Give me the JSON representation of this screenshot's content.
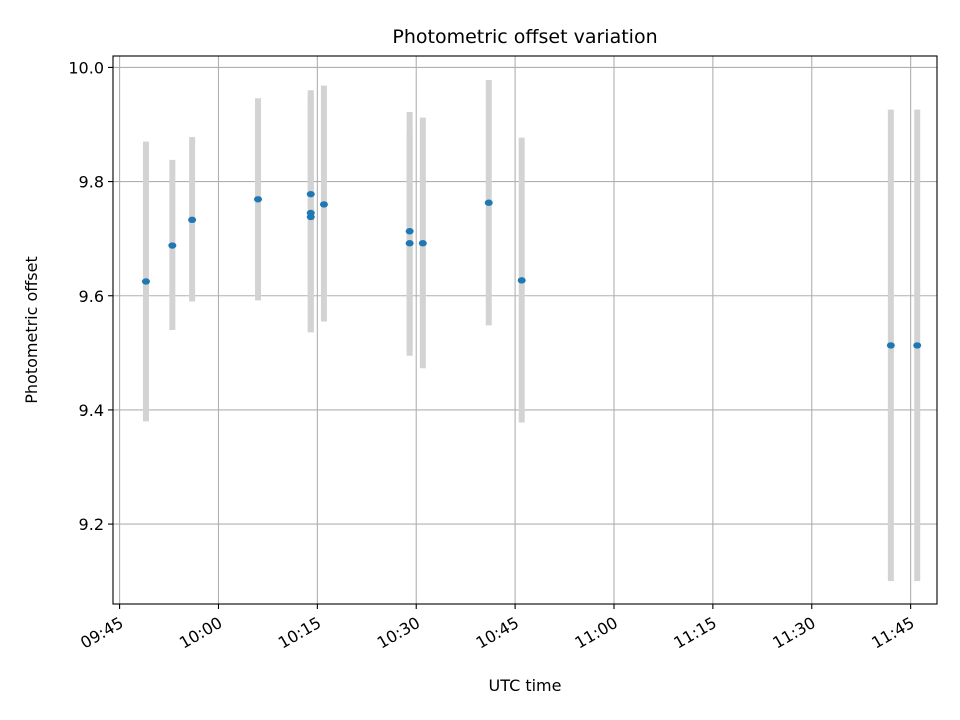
{
  "chart_data": {
    "type": "scatter",
    "title": "Photometric offset variation",
    "xlabel": "UTC time",
    "ylabel": "Photometric offset",
    "x_ticks": [
      "09:45",
      "10:00",
      "10:15",
      "10:30",
      "10:45",
      "11:00",
      "11:15",
      "11:30",
      "11:45"
    ],
    "y_ticks": [
      "9.2",
      "9.4",
      "9.6",
      "9.8",
      "10.0"
    ],
    "xlim": [
      "09:44",
      "11:49"
    ],
    "ylim": [
      9.06,
      10.02
    ],
    "grid": true,
    "colors": {
      "marker": "#1f77b4",
      "errorbar": "#d3d3d3",
      "grid": "#b0b0b0"
    },
    "series": [
      {
        "points": [
          {
            "x": "09:49",
            "y": 9.625,
            "err_low": 9.38,
            "err_high": 9.87
          },
          {
            "x": "09:53",
            "y": 9.688,
            "err_low": 9.54,
            "err_high": 9.838
          },
          {
            "x": "09:56",
            "y": 9.733,
            "err_low": 9.59,
            "err_high": 9.878
          },
          {
            "x": "10:06",
            "y": 9.769,
            "err_low": 9.592,
            "err_high": 9.946
          },
          {
            "x": "10:14",
            "y": 9.778,
            "err_low": 9.596,
            "err_high": 9.96
          },
          {
            "x": "10:14",
            "y": 9.745,
            "err_low": 9.536,
            "err_high": 9.954
          },
          {
            "x": "10:14",
            "y": 9.738,
            "err_low": 9.536,
            "err_high": 9.94
          },
          {
            "x": "10:16",
            "y": 9.76,
            "err_low": 9.555,
            "err_high": 9.968
          },
          {
            "x": "10:29",
            "y": 9.713,
            "err_low": 9.503,
            "err_high": 9.922
          },
          {
            "x": "10:29",
            "y": 9.692,
            "err_low": 9.495,
            "err_high": 9.888
          },
          {
            "x": "10:31",
            "y": 9.692,
            "err_low": 9.473,
            "err_high": 9.912
          },
          {
            "x": "10:41",
            "y": 9.763,
            "err_low": 9.548,
            "err_high": 9.978
          },
          {
            "x": "10:46",
            "y": 9.627,
            "err_low": 9.378,
            "err_high": 9.877
          },
          {
            "x": "11:42",
            "y": 9.513,
            "err_low": 9.1,
            "err_high": 9.926
          },
          {
            "x": "11:46",
            "y": 9.513,
            "err_low": 9.1,
            "err_high": 9.926
          }
        ]
      }
    ]
  }
}
